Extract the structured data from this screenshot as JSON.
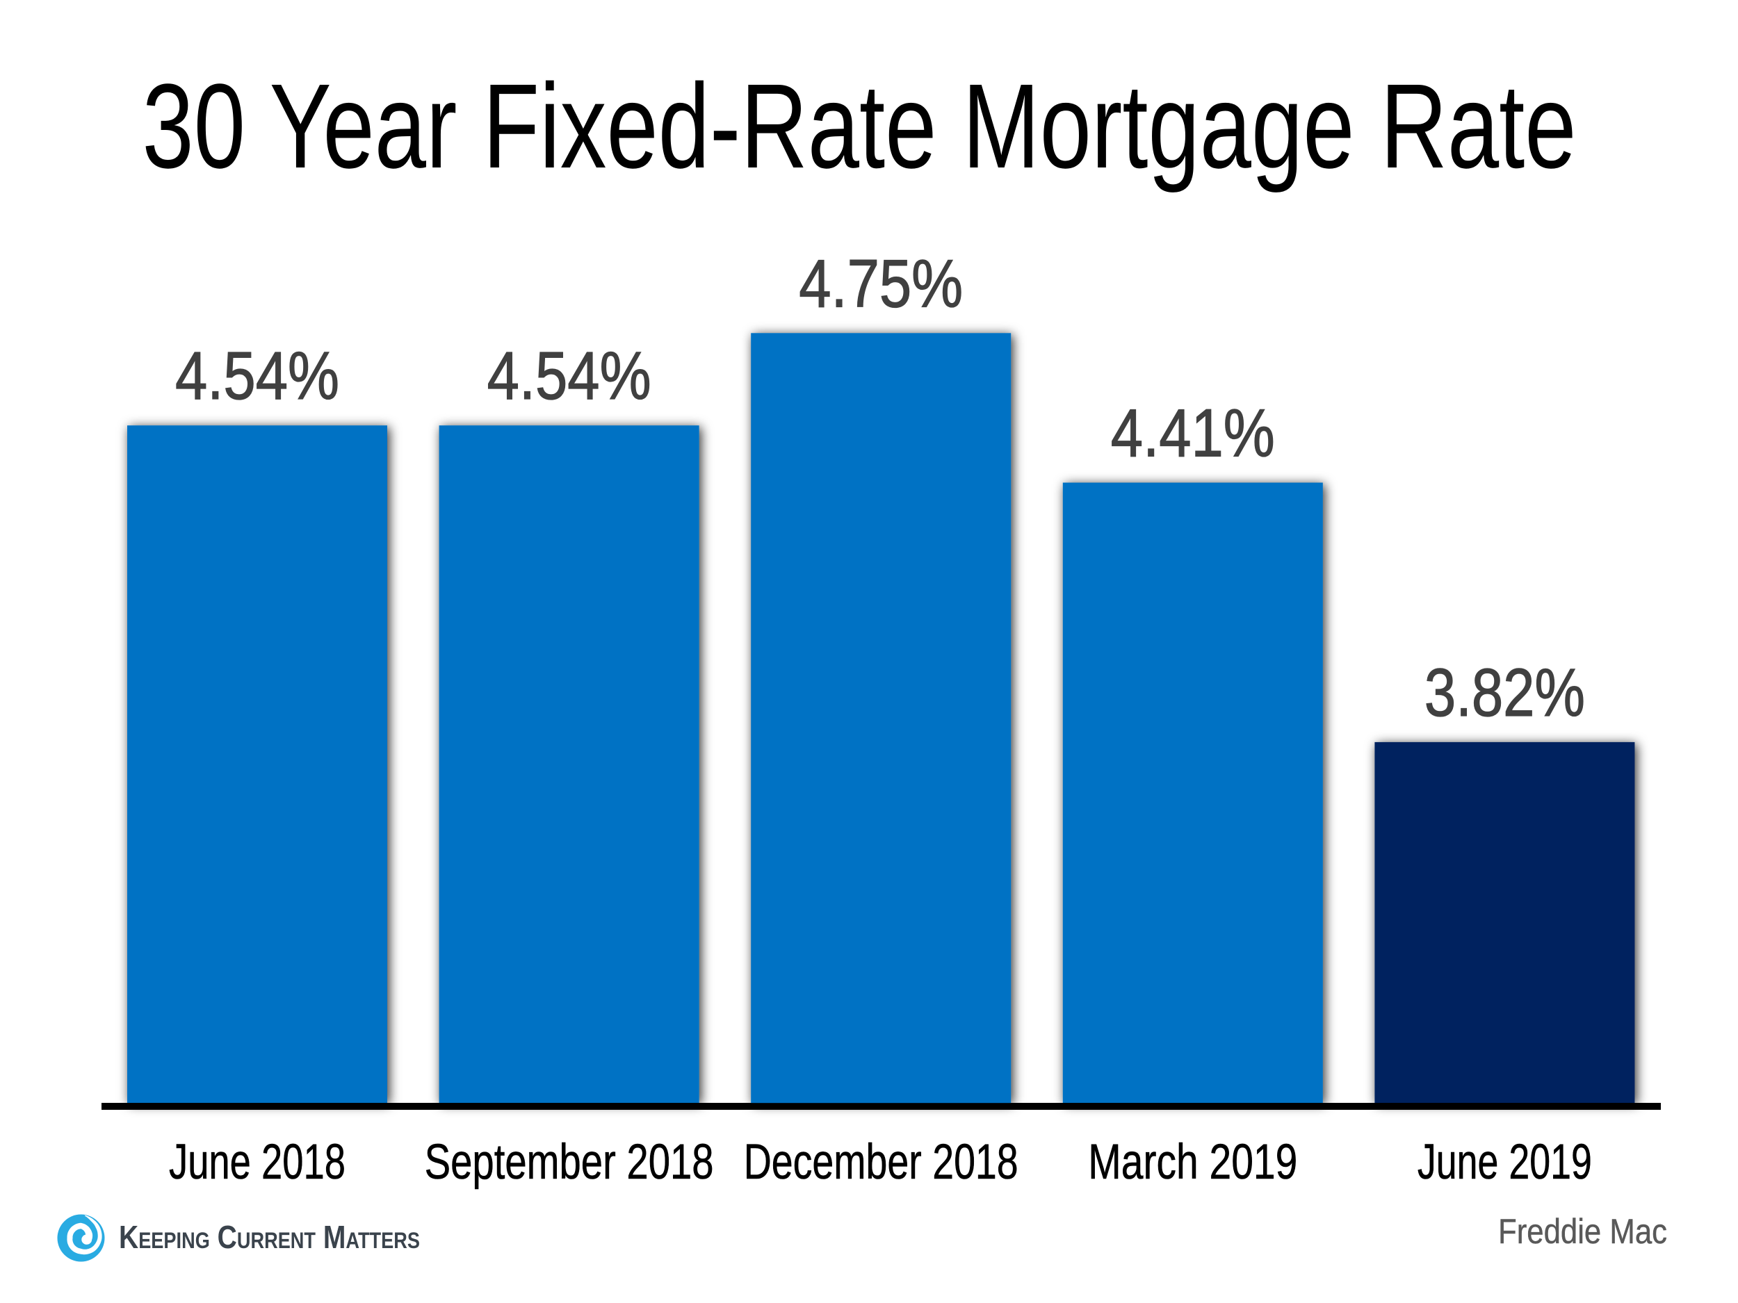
{
  "title": "30 Year Fixed-Rate Mortgage Rate",
  "chart_data": {
    "type": "bar",
    "title": "30 Year Fixed-Rate Mortgage Rate",
    "categories": [
      "June 2018",
      "September 2018",
      "December 2018",
      "March 2019",
      "June 2019"
    ],
    "values": [
      4.54,
      4.54,
      4.75,
      4.41,
      3.82
    ],
    "value_labels": [
      "4.54%",
      "4.54%",
      "4.75%",
      "4.41%",
      "3.82%"
    ],
    "unit": "%",
    "ylim": [
      3.0,
      4.9
    ],
    "grid": false,
    "legend": false,
    "bar_color": "#0572C4",
    "highlight_bar_color": "#01235F",
    "highlight_index": 4,
    "value_label_color": "#404040",
    "category_label_color": "#000000",
    "axis_line_color": "#000000",
    "source": "Freddie Mac"
  },
  "footer": {
    "logo_brand": "Keeping Current Matters",
    "source_attribution": "Freddie Mac"
  },
  "colors": {
    "background": "#FFFFFF",
    "bar_blue": "#0572C4",
    "bar_navy": "#01235F",
    "title_black": "#000000",
    "value_gray": "#404040",
    "source_gray": "#595959",
    "logo_cyan": "#29ABE2",
    "logo_text": "#3A434C"
  }
}
